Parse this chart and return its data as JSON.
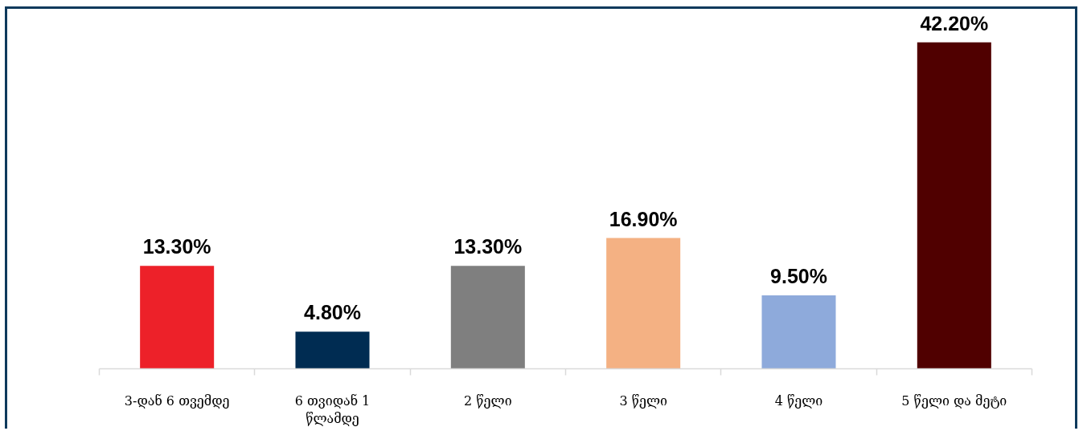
{
  "chart_data": {
    "type": "bar",
    "categories": [
      "3-დან 6 თვემდე",
      "6 თვიდან 1 წლამდე",
      "2 წელი",
      "3 წელი",
      "4 წელი",
      "5 წელი და მეტი"
    ],
    "values": [
      13.3,
      4.8,
      13.3,
      16.9,
      9.5,
      42.2
    ],
    "colors": [
      "#ed2129",
      "#002c52",
      "#7f7f7f",
      "#f4b183",
      "#8eaadb",
      "#500000"
    ],
    "value_labels": [
      "13.30%",
      "4.80%",
      "13.30%",
      "16.90%",
      "9.50%",
      "42.20%"
    ]
  }
}
